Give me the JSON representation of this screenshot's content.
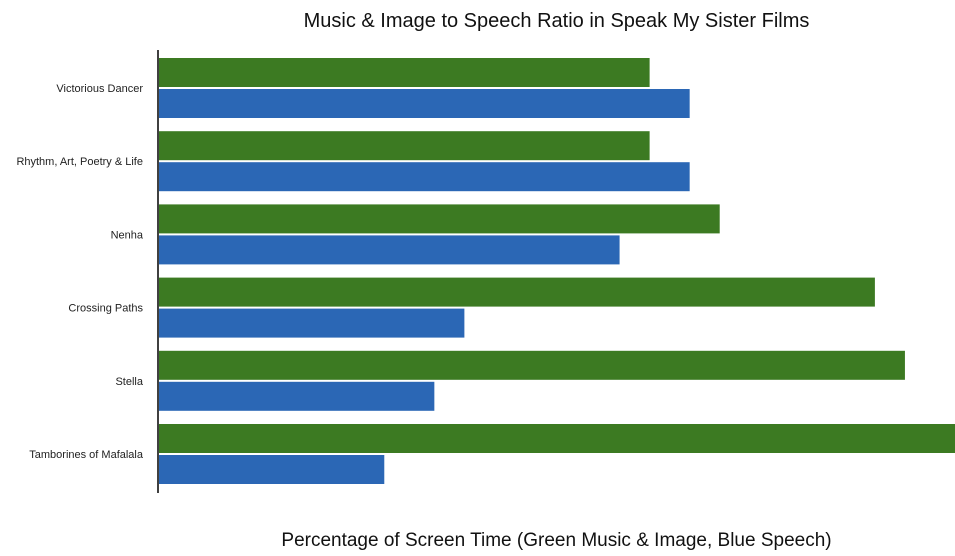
{
  "chart_data": {
    "type": "bar",
    "orientation": "horizontal",
    "title": "Music & Image to Speech Ratio in Speak My Sister Films",
    "xlabel": "Percentage of Screen Time (Green Music & Image, Blue Speech)",
    "ylabel": "",
    "categories": [
      "Victorious Dancer",
      "Rhythm, Art, Poetry & Life",
      "Nenha",
      "Crossing Paths",
      "Stella",
      "Tamborines of Mafalala"
    ],
    "series": [
      {
        "color": "#3c7a22",
        "values": [
          49,
          49,
          56,
          71.5,
          74.5,
          79.5
        ]
      },
      {
        "color": "#2b67b5",
        "values": [
          53,
          53,
          46,
          30.5,
          27.5,
          22.5
        ]
      }
    ],
    "xlim": [
      0,
      79.5
    ],
    "grid": false,
    "legend": "none"
  }
}
